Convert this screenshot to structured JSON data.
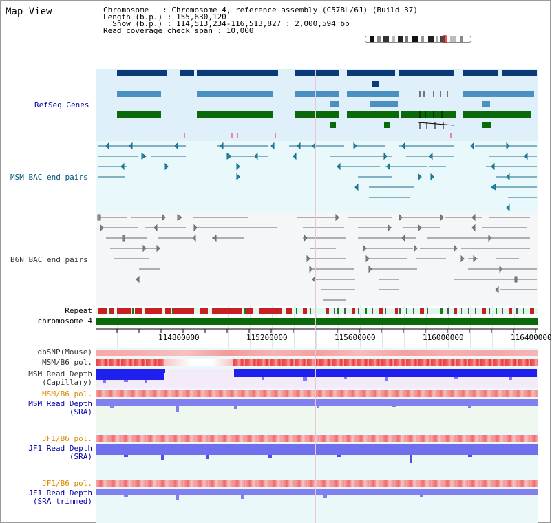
{
  "header": {
    "title": "Map View",
    "chromosome_line": "Chromosome   : Chromosome 4, reference assembly (C57BL/6J) (Build 37)",
    "length_line": "Length (b.p.) : 155,630,120",
    "show_line": "  Show (b.p.) : 114,513,234-116,513,827 : 2,000,594 bp",
    "coverage_line": "Read coverage check span : 10,000"
  },
  "tracks": {
    "refseq": "RefSeq Genes",
    "msm_bac": "MSM BAC end pairs",
    "b6n_bac": "B6N BAC end pairs",
    "repeat": "Repeat",
    "chromosome": "chromosome 4",
    "dbsnp": "dbSNP(Mouse)",
    "msm_b6_pol": "MSM/B6 pol.",
    "msm_depth_cap_1": "MSM Read Depth",
    "msm_depth_cap_2": "(Capillary)",
    "msm_b6_pol2": "MSM/B6 pol.",
    "msm_depth_sra_1": "MSM Read Depth",
    "msm_depth_sra_2": "(SRA)",
    "jf1_b6_pol": "JF1/B6 pol.",
    "jf1_depth_sra_1": "JF1 Read Depth",
    "jf1_depth_sra_2": "(SRA)",
    "jf1_b6_pol2": "JF1/B6 pol.",
    "jf1_depth_trim_1": "JF1 Read Depth",
    "jf1_depth_trim_2": "(SRA trimmed)"
  },
  "axis": {
    "ticks": [
      "114800000",
      "115200000",
      "115600000",
      "116000000",
      "116400000"
    ]
  },
  "colors": {
    "refseq_dark": "#0a3a78",
    "refseq_mid": "#4a90c0",
    "refseq_green": "#0a6a0a",
    "bac_line": "#1a6a8a",
    "b6n_line": "#555555",
    "chromosome_bar": "#0a6a0a",
    "pol_red": "#f03030",
    "depth_blue": "#2a2aee",
    "depth_light": "#7a7aee"
  }
}
